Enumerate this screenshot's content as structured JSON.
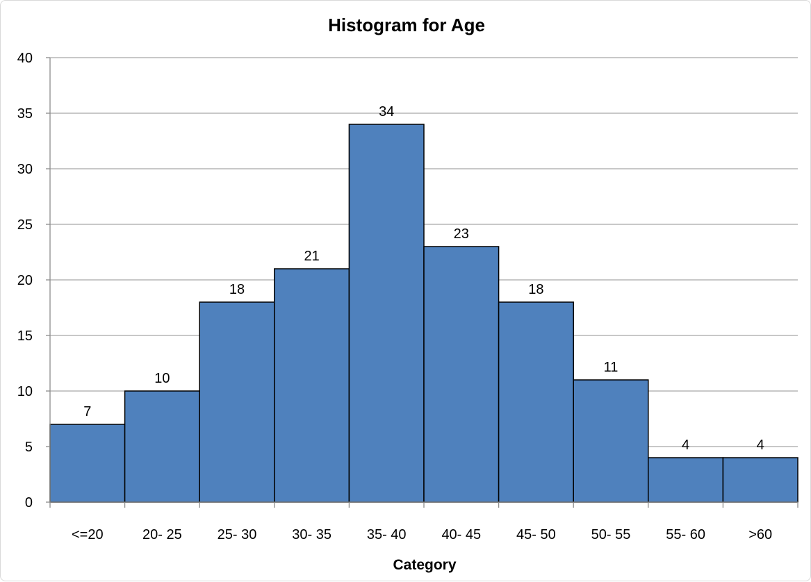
{
  "chart_data": {
    "type": "bar",
    "title": "Histogram for Age",
    "xlabel": "Category",
    "ylabel": "",
    "categories": [
      "<=20",
      "20- 25",
      "25- 30",
      "30- 35",
      "35- 40",
      "40- 45",
      "45- 50",
      "50- 55",
      "55- 60",
      ">60"
    ],
    "values": [
      7,
      10,
      18,
      21,
      34,
      23,
      18,
      11,
      4,
      4
    ],
    "ylim": [
      0,
      40
    ],
    "yticks": [
      0,
      5,
      10,
      15,
      20,
      25,
      30,
      35,
      40
    ],
    "grid": true,
    "legend": "none",
    "bar_color": "#4f81bd",
    "bar_edge_color": "#000000",
    "data_labels": true
  }
}
